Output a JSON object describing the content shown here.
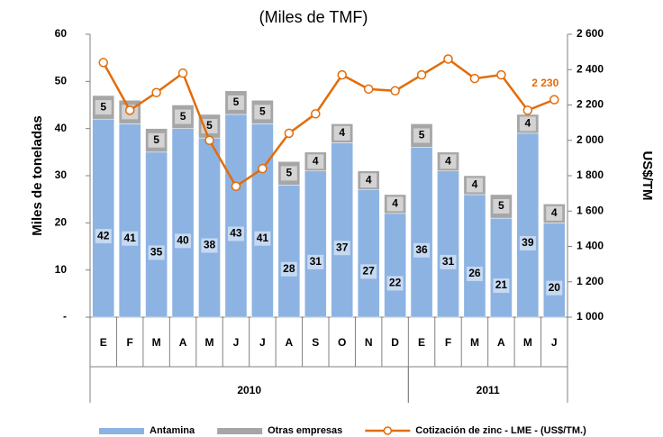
{
  "chart_data": {
    "type": "bar_line",
    "title": "(Miles de TMF)",
    "ylabel": "Miles de toneladas",
    "y2label": "US$/TM",
    "categories": [
      "E",
      "F",
      "M",
      "A",
      "M",
      "J",
      "J",
      "A",
      "S",
      "O",
      "N",
      "D",
      "E",
      "F",
      "M",
      "A",
      "M",
      "J"
    ],
    "year_groups": [
      {
        "label": "2010",
        "count": 12
      },
      {
        "label": "2011",
        "count": 6
      }
    ],
    "series": [
      {
        "name": "Antamina",
        "type": "bar",
        "color": "#8db3e2",
        "values": [
          42,
          41,
          35,
          40,
          38,
          43,
          41,
          28,
          31,
          37,
          27,
          22,
          36,
          31,
          26,
          21,
          39,
          20
        ]
      },
      {
        "name": "Otras empresas",
        "type": "bar",
        "color": "#a6a6a6",
        "values": [
          5,
          5,
          5,
          5,
          5,
          5,
          5,
          5,
          4,
          4,
          4,
          4,
          5,
          4,
          4,
          5,
          4,
          4
        ]
      },
      {
        "name": "Cotización de zinc - LME - (US$/TM.)",
        "type": "line",
        "axis": "y2",
        "color": "#e36c09",
        "values": [
          2440,
          2170,
          2270,
          2380,
          2000,
          1740,
          1840,
          2040,
          2150,
          2370,
          2290,
          2280,
          2370,
          2460,
          2350,
          2370,
          2170,
          2230
        ],
        "value_labels": [
          null,
          null,
          null,
          null,
          null,
          null,
          null,
          null,
          null,
          null,
          null,
          null,
          null,
          null,
          null,
          null,
          null,
          "2 230"
        ]
      }
    ],
    "ylim": [
      0,
      60
    ],
    "yticks": [
      {
        "value": 0,
        "label": "-"
      },
      10,
      20,
      30,
      40,
      50,
      60
    ],
    "y2lim": [
      1000,
      2600
    ],
    "y2ticks": [
      {
        "value": 1000,
        "label": "1 000"
      },
      {
        "value": 1200,
        "label": "1 200"
      },
      {
        "value": 1400,
        "label": "1 400"
      },
      {
        "value": 1600,
        "label": "1 600"
      },
      {
        "value": 1800,
        "label": "1 800"
      },
      {
        "value": 2000,
        "label": "2 000"
      },
      {
        "value": 2200,
        "label": "2 200"
      },
      {
        "value": 2400,
        "label": "2 400"
      },
      {
        "value": 2600,
        "label": "2 600"
      }
    ]
  }
}
